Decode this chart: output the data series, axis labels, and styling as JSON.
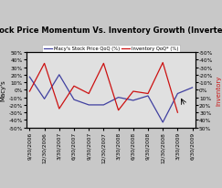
{
  "title": "Stock Price Momentum Vs. Inventory Growth (Inverted)",
  "x_labels": [
    "9/30/2006",
    "12/30/2006",
    "3/30/2007",
    "6/30/2007",
    "9/30/2007",
    "12/30/2007",
    "3/30/2008",
    "6/30/2008",
    "9/30/2008",
    "12/30/2008",
    "3/30/2009",
    "6/30/2009"
  ],
  "macys_qoq": [
    17,
    -12,
    20,
    -13,
    -20,
    -20,
    -10,
    -14,
    -8,
    -43,
    -5,
    3
  ],
  "inventory_qoq": [
    2,
    -35,
    25,
    -5,
    5,
    -35,
    27,
    2,
    5,
    -36,
    30,
    null
  ],
  "macys_color": "#4040a0",
  "inventory_color": "#cc1111",
  "left_ylabel": "Macy's",
  "right_ylabel": "Inventory",
  "left_ylim": [
    -50,
    50
  ],
  "right_ylim": [
    50,
    -50
  ],
  "left_yticks": [
    -50,
    -40,
    -30,
    -20,
    -10,
    0,
    10,
    20,
    30,
    40,
    50
  ],
  "right_yticks": [
    50,
    40,
    30,
    20,
    10,
    0,
    -10,
    -20,
    -30,
    -40,
    -50
  ],
  "legend_macys": "Macy's Stock Price QoQ (%)",
  "legend_inventory": "Inventory QoQ* (%)",
  "plot_bg_color": "#e0e0e0",
  "fig_bg_color": "#c8c8c8",
  "title_fontsize": 6.0,
  "axis_fontsize": 5.0,
  "tick_fontsize": 4.2,
  "legend_fontsize": 3.8
}
